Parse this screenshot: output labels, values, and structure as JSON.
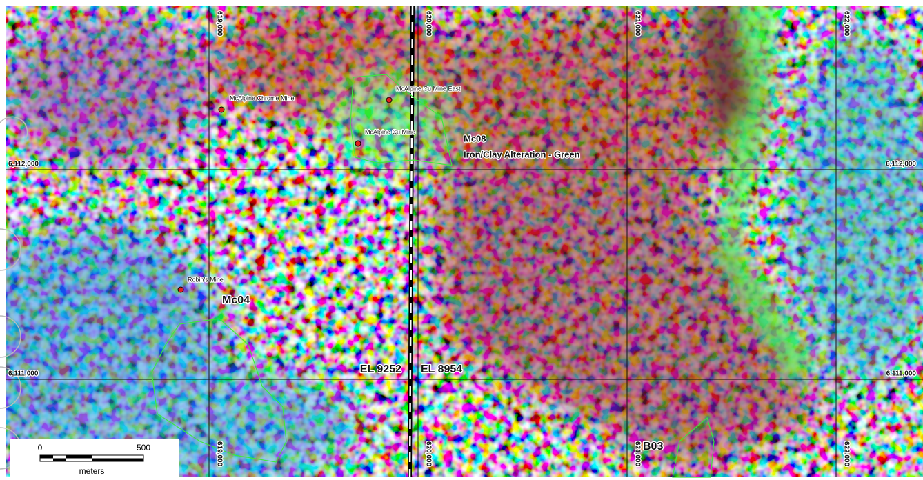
{
  "map": {
    "eastings": [
      "619,000",
      "620,000",
      "621,000",
      "622,000"
    ],
    "northings": [
      "6,112,000",
      "6,111,000"
    ],
    "mines": [
      "McAlpine Chrome Mine",
      "McAlpine Cu Mine East",
      "McAlpine Cu Mine",
      "Robin's Mine"
    ],
    "zones": {
      "mc08": "Mc08",
      "mc08_note": "Iron/Clay Alteration - Green",
      "mc04": "Mc04",
      "b03": "B03"
    },
    "tenements": [
      "EL 9252",
      "EL 8954"
    ],
    "scale_bar": {
      "start": "0",
      "end": "500",
      "unit": "meters"
    }
  }
}
